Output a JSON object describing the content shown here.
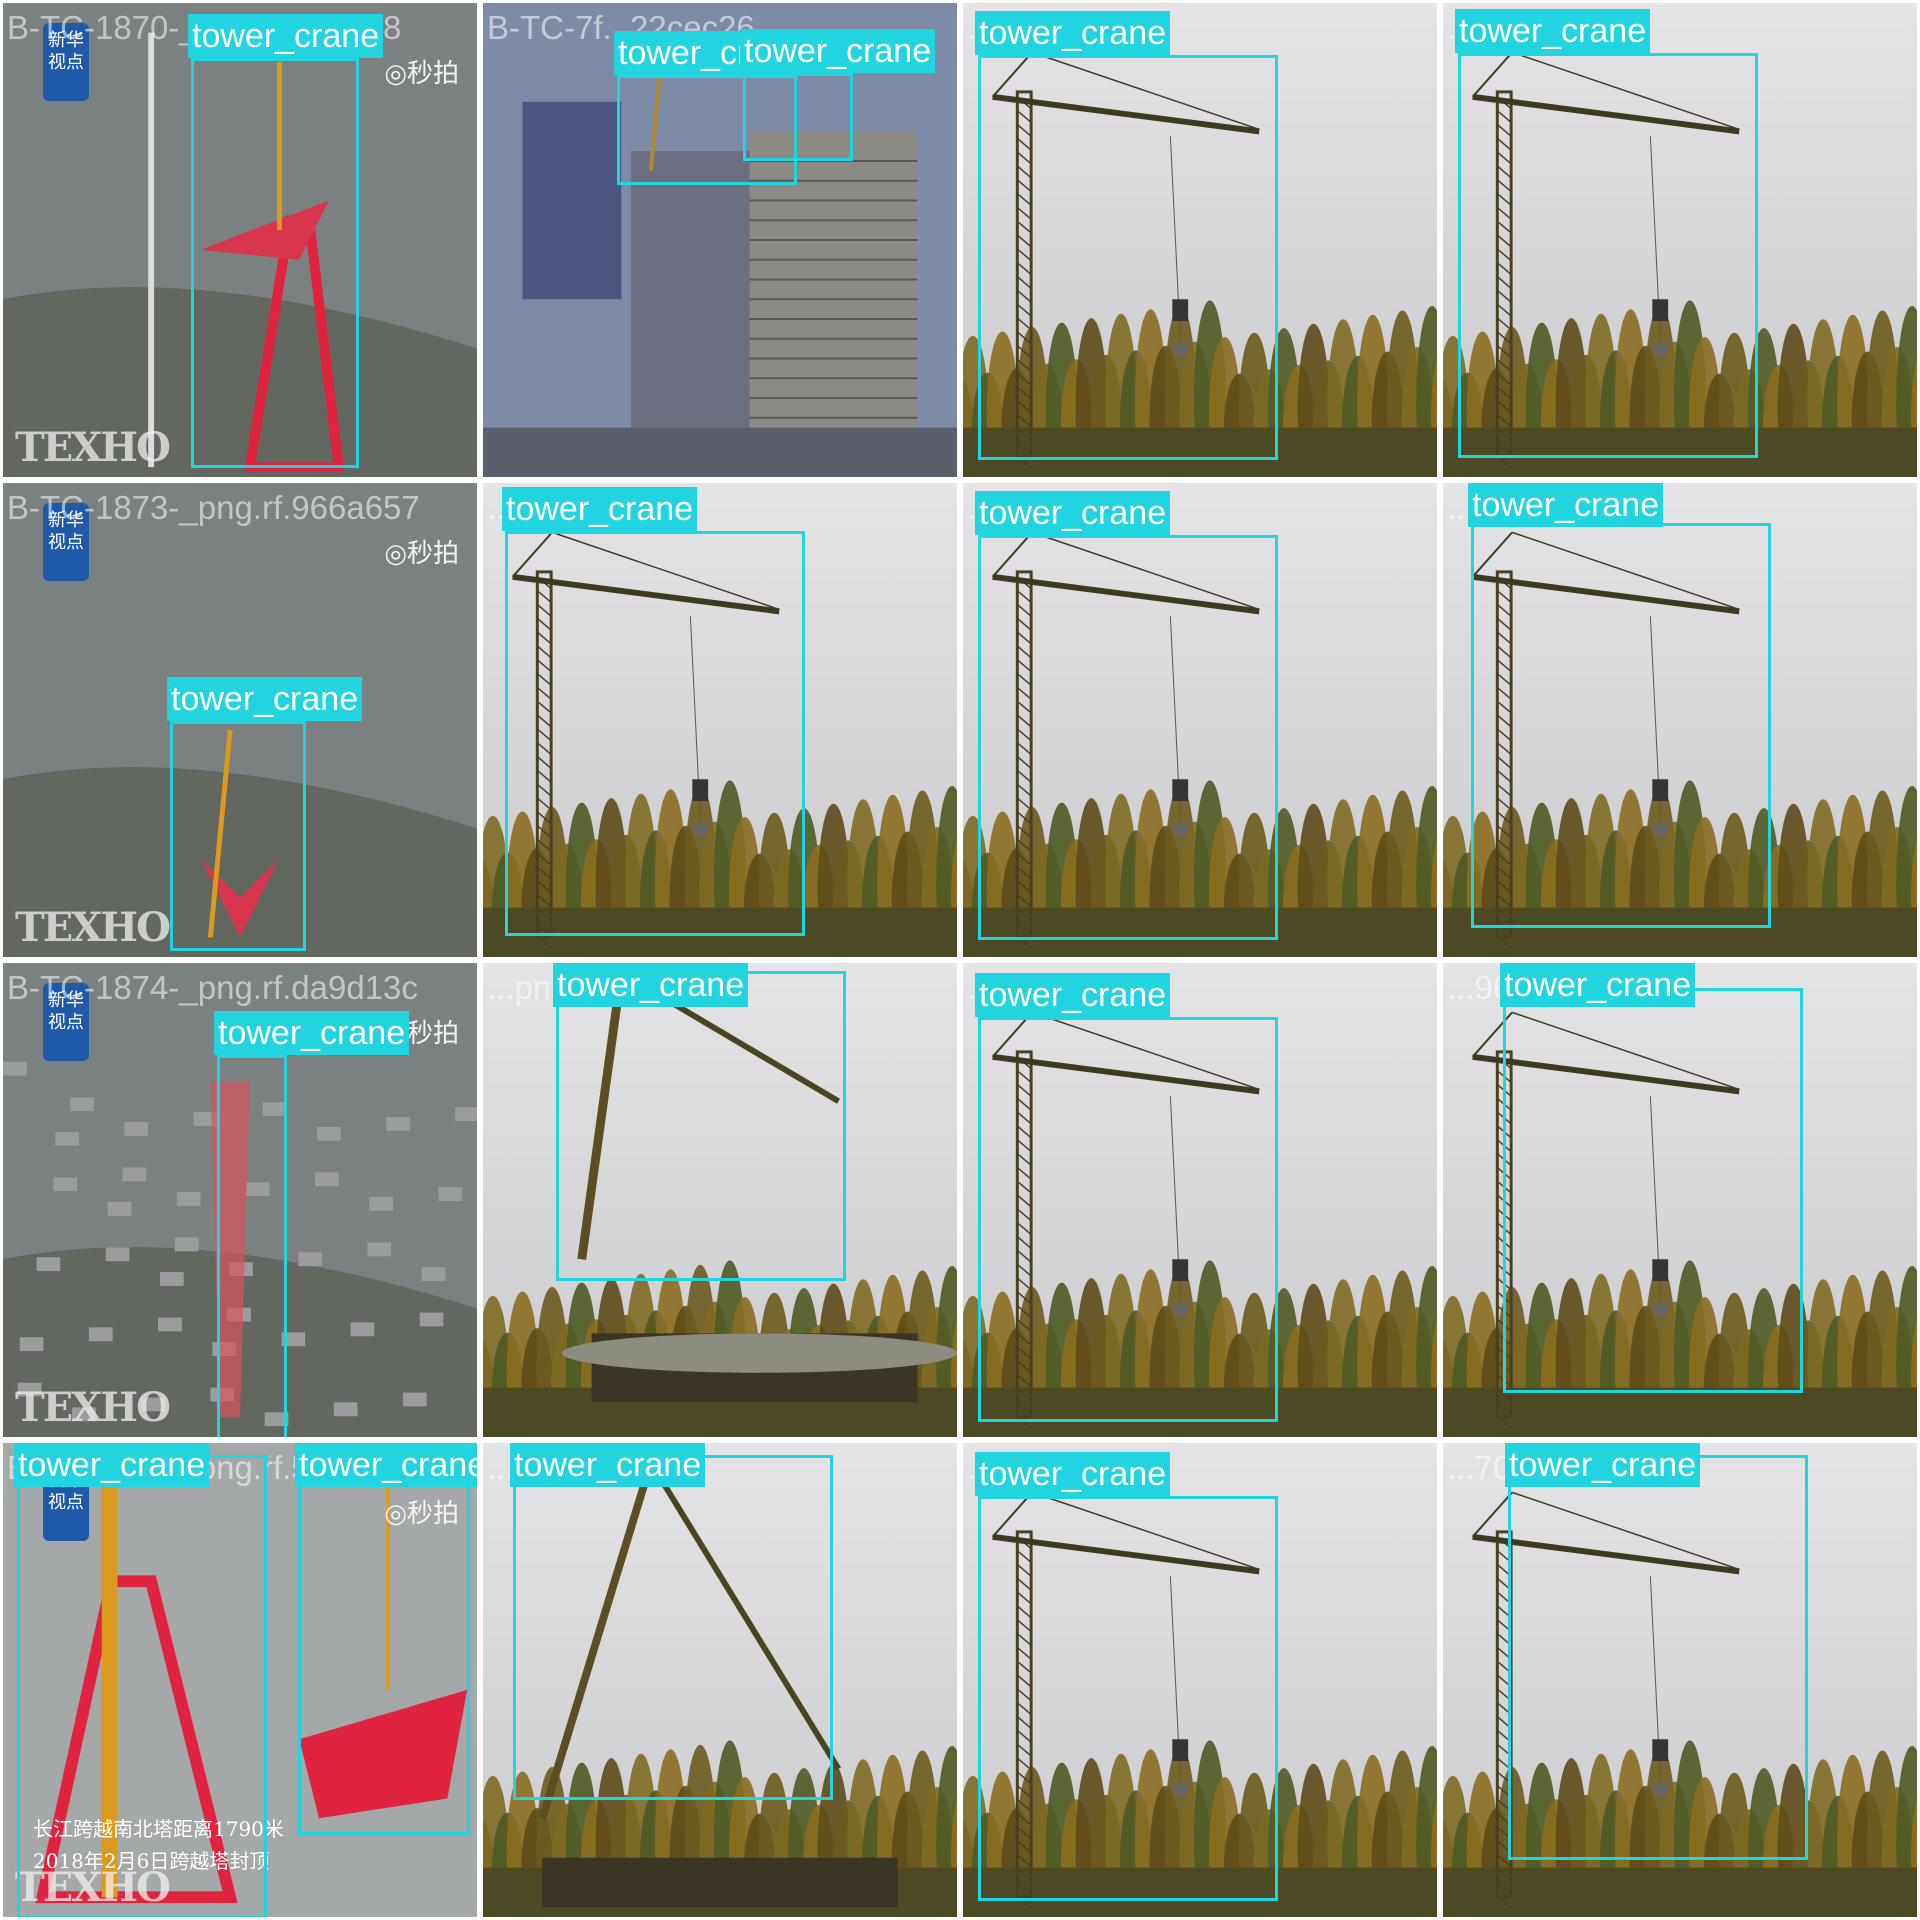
{
  "grid": {
    "columns": 4,
    "rows": 4
  },
  "label_color": "#22d3e0",
  "tiles": [
    {
      "id": "t1",
      "scene": "aerial-red-tower",
      "filename": "B-TC-1870-_png.rf.2059e8",
      "watermarks": {
        "brand": "TEXHO",
        "app": "秒拍",
        "badge": "新华视点"
      },
      "boxes": [
        {
          "label": "tower_crane"
        }
      ]
    },
    {
      "id": "t2",
      "scene": "city-buildings",
      "filename": "B-TC-7f...22cec26",
      "boxes": [
        {
          "label": "tower_crane"
        },
        {
          "label": "tower_crane"
        }
      ]
    },
    {
      "id": "t3",
      "scene": "forest-crane",
      "filename": "...92b54d2",
      "boxes": [
        {
          "label": "tower_crane"
        }
      ]
    },
    {
      "id": "t4",
      "scene": "forest-crane",
      "filename": "...9d49d6b",
      "boxes": [
        {
          "label": "tower_crane"
        }
      ]
    },
    {
      "id": "t5",
      "scene": "aerial-red-small",
      "filename": "B-TC-1873-_png.rf.966a657",
      "watermarks": {
        "brand": "TEXHO",
        "app": "秒拍",
        "badge": "新华视点"
      },
      "boxes": [
        {
          "label": "tower_crane"
        }
      ]
    },
    {
      "id": "t6",
      "scene": "forest-crane",
      "filename": "...rf.0a28bab",
      "boxes": [
        {
          "label": "tower_crane"
        }
      ]
    },
    {
      "id": "t7",
      "scene": "forest-crane",
      "filename": "...035e403",
      "boxes": [
        {
          "label": "tower_crane"
        }
      ]
    },
    {
      "id": "t8",
      "scene": "forest-crane",
      "filename": "...rf.7f7a876",
      "boxes": [
        {
          "label": "tower_crane"
        }
      ]
    },
    {
      "id": "t9",
      "scene": "aerial-city",
      "filename": "B-TC-1874-_png.rf.da9d13c",
      "watermarks": {
        "brand": "TEXHO",
        "app": "秒拍",
        "badge": "新华视点"
      },
      "boxes": [
        {
          "label": "tower_crane"
        }
      ]
    },
    {
      "id": "t10",
      "scene": "tilted-crane",
      "filename": "...png.rf.60a88",
      "boxes": [
        {
          "label": "tower_crane"
        }
      ]
    },
    {
      "id": "t11",
      "scene": "forest-crane",
      "filename": "...fb11aa8b",
      "boxes": [
        {
          "label": "tower_crane"
        }
      ]
    },
    {
      "id": "t12",
      "scene": "forest-crane",
      "filename": "...969f0fb",
      "boxes": [
        {
          "label": "tower_crane"
        }
      ]
    },
    {
      "id": "t13",
      "scene": "red-tower-lift",
      "filename": "B-TC-1883-_png.rf.5848fbdf",
      "watermarks": {
        "brand": "TEXHO",
        "app": "秒拍",
        "badge": "新华视点",
        "caption_line1": "长江跨越南北塔距离1790米",
        "caption_line2": "2018年2月6日跨越塔封顶"
      },
      "boxes": [
        {
          "label": "tower_crane"
        },
        {
          "label": "tower_crane"
        }
      ]
    },
    {
      "id": "t14",
      "scene": "falling-crane",
      "filename": "...a99",
      "boxes": [
        {
          "label": "tower_crane"
        }
      ]
    },
    {
      "id": "t15",
      "scene": "forest-crane",
      "filename": "...rf.76a5432",
      "boxes": [
        {
          "label": "tower_crane"
        }
      ]
    },
    {
      "id": "t16",
      "scene": "forest-crane",
      "filename": "...70c636",
      "boxes": [
        {
          "label": "tower_crane"
        }
      ]
    }
  ]
}
